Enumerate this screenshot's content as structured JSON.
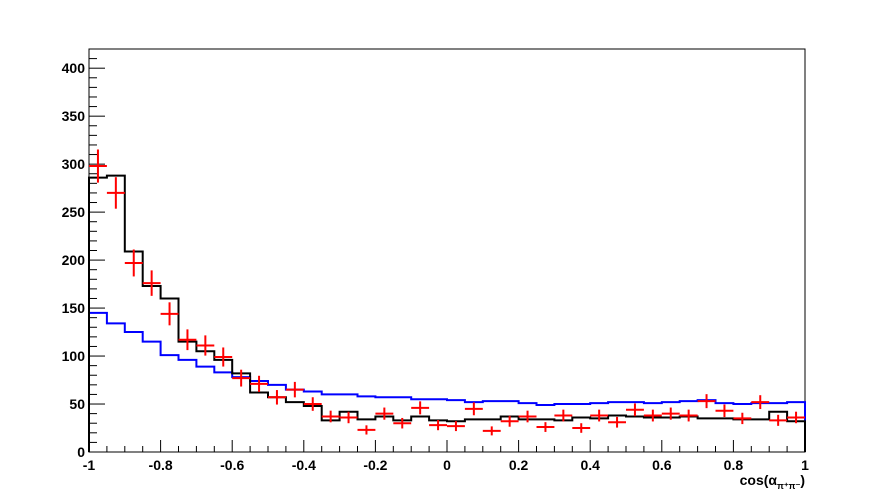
{
  "chart_data": {
    "type": "histogram",
    "title": "",
    "xlabel": {
      "main": "cos(α",
      "subscript": "π⁺π⁻",
      "close": ")"
    },
    "ylabel": "",
    "xlim": [
      -1,
      1
    ],
    "ylim": [
      0,
      420
    ],
    "x_ticks": [
      "-1",
      "-0.8",
      "-0.6",
      "-0.4",
      "-0.2",
      "0",
      "0.2",
      "0.4",
      "0.6",
      "0.8",
      "1"
    ],
    "y_ticks": [
      "0",
      "50",
      "100",
      "150",
      "200",
      "250",
      "300",
      "350",
      "400"
    ],
    "bin_edges": [
      -1,
      -0.95,
      -0.9,
      -0.85,
      -0.8,
      -0.75,
      -0.7,
      -0.65,
      -0.6,
      -0.55,
      -0.5,
      -0.45,
      -0.4,
      -0.35,
      -0.3,
      -0.25,
      -0.2,
      -0.15,
      -0.1,
      -0.05,
      0,
      0.05,
      0.1,
      0.15,
      0.2,
      0.25,
      0.3,
      0.35,
      0.4,
      0.45,
      0.5,
      0.55,
      0.6,
      0.65,
      0.7,
      0.75,
      0.8,
      0.85,
      0.9,
      0.95,
      1
    ],
    "grid": false,
    "series": [
      {
        "style": "points-with-errors",
        "color": "#ff0000",
        "x": [
          -0.975,
          -0.925,
          -0.875,
          -0.825,
          -0.775,
          -0.725,
          -0.675,
          -0.625,
          -0.575,
          -0.525,
          -0.475,
          -0.425,
          -0.375,
          -0.325,
          -0.275,
          -0.225,
          -0.175,
          -0.125,
          -0.075,
          -0.025,
          0.025,
          0.075,
          0.125,
          0.175,
          0.225,
          0.275,
          0.325,
          0.375,
          0.425,
          0.475,
          0.525,
          0.575,
          0.625,
          0.675,
          0.725,
          0.775,
          0.825,
          0.875,
          0.925,
          0.975
        ],
        "y": [
          298,
          270,
          197,
          176,
          144,
          117,
          111,
          99,
          77,
          71,
          57,
          65,
          50,
          37,
          36,
          23,
          40,
          30,
          46,
          28,
          27,
          45,
          22,
          32,
          37,
          26,
          38,
          25,
          38,
          31,
          44,
          38,
          40,
          38,
          53,
          43,
          35,
          52,
          33,
          36
        ]
      },
      {
        "style": "step",
        "color": "#000000",
        "values": [
          286,
          288,
          209,
          173,
          160,
          115,
          105,
          96,
          82,
          62,
          57,
          52,
          48,
          33,
          42,
          34,
          37,
          33,
          37,
          33,
          32,
          34,
          34,
          37,
          34,
          34,
          33,
          36,
          35,
          38,
          37,
          36,
          36,
          37,
          35,
          35,
          34,
          34,
          42,
          32
        ]
      },
      {
        "style": "step",
        "color": "#0000ff",
        "values": [
          145,
          134,
          125,
          115,
          101,
          96,
          89,
          83,
          78,
          74,
          70,
          65,
          63,
          60,
          60,
          58,
          57,
          57,
          55,
          55,
          54,
          52,
          53,
          53,
          51,
          49,
          50,
          50,
          51,
          52,
          52,
          51,
          52,
          53,
          54,
          51,
          50,
          51,
          51,
          52
        ]
      }
    ]
  }
}
